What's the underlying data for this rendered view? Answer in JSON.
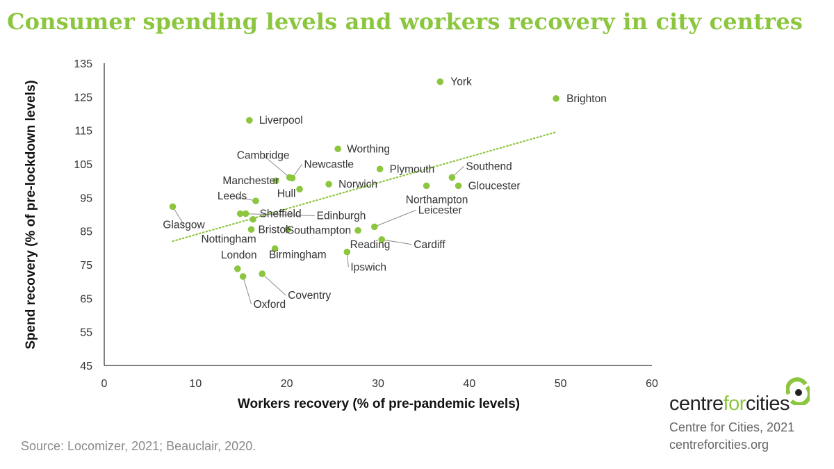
{
  "title": "Consumer spending levels and workers recovery in city centres",
  "source": "Source: Locomizer, 2021; Beauclair, 2020.",
  "brand": {
    "logo_part1": "centre",
    "logo_part2": "for",
    "logo_part3": "cities",
    "credit": "Centre for Cities, 2021",
    "url": "centreforcities.org"
  },
  "colors": {
    "accent": "#8cc63f",
    "point": "#8cc63f",
    "trendline": "#8cc63f",
    "axis": "#000000",
    "text": "#333333"
  },
  "chart_data": {
    "type": "scatter",
    "title": "Consumer spending levels and workers recovery in city centres",
    "xlabel": "Workers recovery (% of pre-pandemic levels)",
    "ylabel": "Spend recovery (% of pre-lockdown levels)",
    "xlim": [
      0,
      60
    ],
    "ylim": [
      45,
      135
    ],
    "xticks": [
      0,
      10,
      20,
      30,
      40,
      50,
      60
    ],
    "yticks": [
      45,
      55,
      65,
      75,
      85,
      95,
      105,
      115,
      125,
      135
    ],
    "grid": false,
    "legend": "none",
    "trendline": {
      "style": "dotted",
      "x": [
        7.5,
        49.5
      ],
      "y": [
        82,
        114.5
      ]
    },
    "points": [
      {
        "name": "York",
        "x": 36.8,
        "y": 129.5
      },
      {
        "name": "Brighton",
        "x": 49.5,
        "y": 124.5
      },
      {
        "name": "Liverpool",
        "x": 15.9,
        "y": 118
      },
      {
        "name": "Worthing",
        "x": 25.6,
        "y": 109.5
      },
      {
        "name": "Cambridge",
        "x": 20.3,
        "y": 101
      },
      {
        "name": "Newcastle",
        "x": 20.6,
        "y": 100.8
      },
      {
        "name": "Plymouth",
        "x": 30.2,
        "y": 103.5
      },
      {
        "name": "Southend",
        "x": 38.1,
        "y": 101
      },
      {
        "name": "Manchester",
        "x": 18.8,
        "y": 100
      },
      {
        "name": "Norwich",
        "x": 24.6,
        "y": 99
      },
      {
        "name": "Northampton",
        "x": 35.3,
        "y": 98.5
      },
      {
        "name": "Gloucester",
        "x": 38.8,
        "y": 98.5
      },
      {
        "name": "Hull",
        "x": 21.4,
        "y": 97.5
      },
      {
        "name": "Leeds",
        "x": 16.6,
        "y": 94
      },
      {
        "name": "Glasgow",
        "x": 7.5,
        "y": 92.3
      },
      {
        "name": "Edinburgh",
        "x": 14.9,
        "y": 90.2
      },
      {
        "name": "Sheffield",
        "x": 15.5,
        "y": 90.2
      },
      {
        "name": "Nottingham",
        "x": 16.3,
        "y": 88.5
      },
      {
        "name": "Leicester",
        "x": 29.6,
        "y": 86.3
      },
      {
        "name": "Bristol",
        "x": 16.1,
        "y": 85.5
      },
      {
        "name": "Southampton",
        "x": 27.8,
        "y": 85.2
      },
      {
        "name": "Birmingham",
        "x": 20.1,
        "y": 85.5
      },
      {
        "name": "Cardiff",
        "x": 30.4,
        "y": 82.5
      },
      {
        "name": "Reading",
        "x": 18.7,
        "y": 79.8
      },
      {
        "name": "Ipswich",
        "x": 26.6,
        "y": 78.8
      },
      {
        "name": "London",
        "x": 14.6,
        "y": 73.8
      },
      {
        "name": "Coventry",
        "x": 17.3,
        "y": 72.3
      },
      {
        "name": "Oxford",
        "x": 15.2,
        "y": 71.5
      }
    ]
  }
}
